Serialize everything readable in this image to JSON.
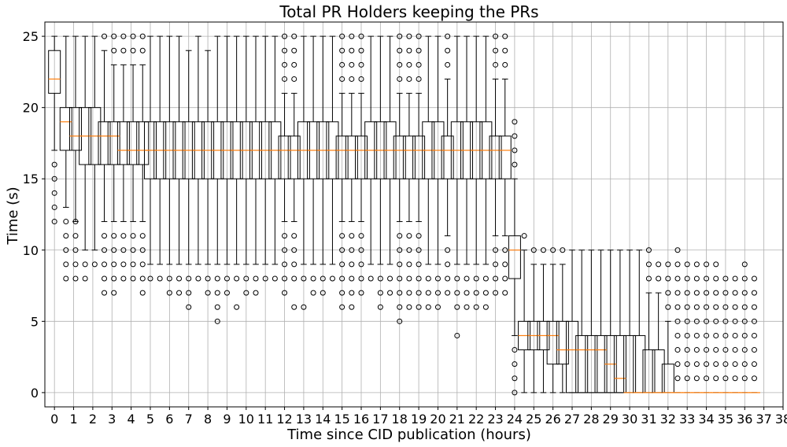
{
  "chart_data": {
    "type": "box",
    "title": "Total PR Holders keeping the PRs",
    "xlabel": "Time since CID publication (hours)",
    "ylabel": "Time (s)",
    "xlim": [
      -0.5,
      38
    ],
    "ylim": [
      -1,
      26
    ],
    "x_ticks": [
      "0",
      "1",
      "2",
      "3",
      "4",
      "5",
      "6",
      "7",
      "8",
      "9",
      "10",
      "11",
      "12",
      "13",
      "14",
      "15",
      "16",
      "17",
      "18",
      "19",
      "20",
      "21",
      "22",
      "23",
      "24",
      "25",
      "26",
      "27",
      "28",
      "29",
      "30",
      "31",
      "32",
      "33",
      "34",
      "35",
      "36",
      "37",
      "38"
    ],
    "y_ticks": [
      "0",
      "5",
      "10",
      "15",
      "20",
      "25"
    ],
    "grid": true,
    "colors": {
      "median": "#ff7f0e",
      "box": "#000000",
      "grid": "#b0b0b0"
    },
    "boxes": [
      {
        "x": 0.0,
        "q1": 21,
        "med": 22,
        "q3": 24,
        "lo": 17,
        "hi": 25,
        "fl": [
          12,
          13,
          14,
          15,
          16
        ]
      },
      {
        "x": 0.6,
        "q1": 17,
        "med": 19,
        "q3": 20,
        "lo": 13,
        "hi": 25,
        "fl": [
          8,
          9,
          10,
          11,
          12
        ]
      },
      {
        "x": 1.1,
        "q1": 17,
        "med": 18,
        "q3": 20,
        "lo": 12,
        "hi": 25,
        "fl": [
          8,
          9,
          10,
          11,
          12
        ]
      },
      {
        "x": 1.6,
        "q1": 16,
        "med": 18,
        "q3": 20,
        "lo": 10,
        "hi": 25,
        "fl": [
          8,
          9
        ]
      },
      {
        "x": 2.1,
        "q1": 16,
        "med": 18,
        "q3": 20,
        "lo": 10,
        "hi": 25,
        "fl": [
          9
        ]
      },
      {
        "x": 2.6,
        "q1": 16,
        "med": 18,
        "q3": 19,
        "lo": 12,
        "hi": 24,
        "fl": [
          7,
          8,
          9,
          10,
          11,
          25
        ]
      },
      {
        "x": 3.1,
        "q1": 16,
        "med": 18,
        "q3": 19,
        "lo": 12,
        "hi": 23,
        "fl": [
          7,
          8,
          9,
          10,
          11,
          24,
          25
        ]
      },
      {
        "x": 3.6,
        "q1": 16,
        "med": 17,
        "q3": 19,
        "lo": 12,
        "hi": 23,
        "fl": [
          8,
          9,
          10,
          11,
          24,
          25
        ]
      },
      {
        "x": 4.1,
        "q1": 16,
        "med": 17,
        "q3": 19,
        "lo": 12,
        "hi": 23,
        "fl": [
          8,
          9,
          10,
          11,
          24,
          25
        ]
      },
      {
        "x": 4.6,
        "q1": 16,
        "med": 17,
        "q3": 19,
        "lo": 12,
        "hi": 23,
        "fl": [
          7,
          8,
          9,
          10,
          11,
          24,
          25
        ]
      },
      {
        "x": 5.0,
        "q1": 15,
        "med": 17,
        "q3": 19,
        "lo": 9,
        "hi": 25,
        "fl": [
          8
        ]
      },
      {
        "x": 5.5,
        "q1": 15,
        "med": 17,
        "q3": 19,
        "lo": 9,
        "hi": 25,
        "fl": [
          8
        ]
      },
      {
        "x": 6.0,
        "q1": 15,
        "med": 17,
        "q3": 19,
        "lo": 9,
        "hi": 25,
        "fl": [
          7,
          8
        ]
      },
      {
        "x": 6.5,
        "q1": 15,
        "med": 17,
        "q3": 19,
        "lo": 9,
        "hi": 25,
        "fl": [
          7,
          8
        ]
      },
      {
        "x": 7.0,
        "q1": 15,
        "med": 17,
        "q3": 19,
        "lo": 9,
        "hi": 24,
        "fl": [
          6,
          7,
          8
        ]
      },
      {
        "x": 7.5,
        "q1": 15,
        "med": 17,
        "q3": 19,
        "lo": 9,
        "hi": 25,
        "fl": [
          8
        ]
      },
      {
        "x": 8.0,
        "q1": 15,
        "med": 17,
        "q3": 19,
        "lo": 9,
        "hi": 24,
        "fl": [
          7,
          8
        ]
      },
      {
        "x": 8.5,
        "q1": 15,
        "med": 17,
        "q3": 19,
        "lo": 9,
        "hi": 25,
        "fl": [
          5,
          6,
          7,
          8
        ]
      },
      {
        "x": 9.0,
        "q1": 15,
        "med": 17,
        "q3": 19,
        "lo": 9,
        "hi": 25,
        "fl": [
          7,
          8
        ]
      },
      {
        "x": 9.5,
        "q1": 15,
        "med": 17,
        "q3": 19,
        "lo": 9,
        "hi": 25,
        "fl": [
          6,
          8
        ]
      },
      {
        "x": 10.0,
        "q1": 15,
        "med": 17,
        "q3": 19,
        "lo": 9,
        "hi": 25,
        "fl": [
          7,
          8
        ]
      },
      {
        "x": 10.5,
        "q1": 15,
        "med": 17,
        "q3": 19,
        "lo": 9,
        "hi": 25,
        "fl": [
          7,
          8
        ]
      },
      {
        "x": 11.0,
        "q1": 15,
        "med": 17,
        "q3": 19,
        "lo": 9,
        "hi": 25,
        "fl": [
          8
        ]
      },
      {
        "x": 11.5,
        "q1": 15,
        "med": 17,
        "q3": 19,
        "lo": 9,
        "hi": 25,
        "fl": [
          8
        ]
      },
      {
        "x": 12.0,
        "q1": 15,
        "med": 17,
        "q3": 18,
        "lo": 12,
        "hi": 21,
        "fl": [
          7,
          8,
          9,
          10,
          11,
          22,
          23,
          24,
          25
        ]
      },
      {
        "x": 12.5,
        "q1": 15,
        "med": 17,
        "q3": 18,
        "lo": 12,
        "hi": 21,
        "fl": [
          6,
          8,
          9,
          10,
          11,
          22,
          23,
          24,
          25
        ]
      },
      {
        "x": 13.0,
        "q1": 15,
        "med": 17,
        "q3": 19,
        "lo": 9,
        "hi": 25,
        "fl": [
          6,
          8
        ]
      },
      {
        "x": 13.5,
        "q1": 15,
        "med": 17,
        "q3": 19,
        "lo": 9,
        "hi": 25,
        "fl": [
          7,
          8
        ]
      },
      {
        "x": 14.0,
        "q1": 15,
        "med": 17,
        "q3": 19,
        "lo": 9,
        "hi": 25,
        "fl": [
          7,
          8
        ]
      },
      {
        "x": 14.5,
        "q1": 15,
        "med": 17,
        "q3": 19,
        "lo": 9,
        "hi": 25,
        "fl": [
          8
        ]
      },
      {
        "x": 15.0,
        "q1": 15,
        "med": 17,
        "q3": 18,
        "lo": 12,
        "hi": 21,
        "fl": [
          6,
          7,
          8,
          9,
          10,
          11,
          22,
          23,
          24,
          25
        ]
      },
      {
        "x": 15.5,
        "q1": 15,
        "med": 17,
        "q3": 18,
        "lo": 12,
        "hi": 21,
        "fl": [
          6,
          7,
          8,
          9,
          10,
          11,
          22,
          23,
          24,
          25
        ]
      },
      {
        "x": 16.0,
        "q1": 15,
        "med": 17,
        "q3": 18,
        "lo": 12,
        "hi": 21,
        "fl": [
          7,
          8,
          9,
          10,
          11,
          22,
          23,
          24,
          25
        ]
      },
      {
        "x": 16.5,
        "q1": 15,
        "med": 17,
        "q3": 19,
        "lo": 9,
        "hi": 25,
        "fl": [
          8
        ]
      },
      {
        "x": 17.0,
        "q1": 15,
        "med": 17,
        "q3": 19,
        "lo": 9,
        "hi": 25,
        "fl": [
          6,
          7,
          8
        ]
      },
      {
        "x": 17.5,
        "q1": 15,
        "med": 17,
        "q3": 19,
        "lo": 9,
        "hi": 25,
        "fl": [
          7,
          8
        ]
      },
      {
        "x": 18.0,
        "q1": 15,
        "med": 17,
        "q3": 18,
        "lo": 12,
        "hi": 21,
        "fl": [
          5,
          6,
          7,
          8,
          9,
          10,
          11,
          22,
          23,
          24,
          25
        ]
      },
      {
        "x": 18.5,
        "q1": 15,
        "med": 17,
        "q3": 18,
        "lo": 12,
        "hi": 21,
        "fl": [
          6,
          7,
          8,
          9,
          10,
          11,
          22,
          23,
          24,
          25
        ]
      },
      {
        "x": 19.0,
        "q1": 15,
        "med": 17,
        "q3": 18,
        "lo": 12,
        "hi": 21,
        "fl": [
          6,
          7,
          8,
          9,
          10,
          11,
          22,
          23,
          24,
          25
        ]
      },
      {
        "x": 19.5,
        "q1": 15,
        "med": 17,
        "q3": 19,
        "lo": 9,
        "hi": 25,
        "fl": [
          6,
          7,
          8
        ]
      },
      {
        "x": 20.0,
        "q1": 15,
        "med": 17,
        "q3": 19,
        "lo": 9,
        "hi": 25,
        "fl": [
          6,
          7,
          8
        ]
      },
      {
        "x": 20.5,
        "q1": 15,
        "med": 17,
        "q3": 18,
        "lo": 11,
        "hi": 22,
        "fl": [
          7,
          8,
          9,
          10,
          23,
          24,
          25
        ]
      },
      {
        "x": 21.0,
        "q1": 15,
        "med": 17,
        "q3": 19,
        "lo": 9,
        "hi": 25,
        "fl": [
          4,
          6,
          7,
          8
        ]
      },
      {
        "x": 21.5,
        "q1": 15,
        "med": 17,
        "q3": 19,
        "lo": 9,
        "hi": 25,
        "fl": [
          6,
          7,
          8
        ]
      },
      {
        "x": 22.0,
        "q1": 15,
        "med": 17,
        "q3": 19,
        "lo": 9,
        "hi": 25,
        "fl": [
          6,
          7,
          8
        ]
      },
      {
        "x": 22.5,
        "q1": 15,
        "med": 17,
        "q3": 19,
        "lo": 9,
        "hi": 25,
        "fl": [
          6,
          7,
          8
        ]
      },
      {
        "x": 23.0,
        "q1": 15,
        "med": 17,
        "q3": 18,
        "lo": 11,
        "hi": 22,
        "fl": [
          7,
          8,
          9,
          10,
          23,
          24,
          25
        ]
      },
      {
        "x": 23.5,
        "q1": 15,
        "med": 17,
        "q3": 18,
        "lo": 11,
        "hi": 22,
        "fl": [
          7,
          8,
          9,
          10,
          23,
          24,
          25
        ]
      },
      {
        "x": 24.0,
        "q1": 8,
        "med": 10,
        "q3": 11,
        "lo": 4,
        "hi": 15,
        "fl": [
          0,
          1,
          2,
          3,
          16,
          17,
          18,
          19
        ]
      },
      {
        "x": 24.5,
        "q1": 3,
        "med": 4,
        "q3": 5,
        "lo": 0,
        "hi": 10,
        "fl": [
          11
        ]
      },
      {
        "x": 25.0,
        "q1": 3,
        "med": 4,
        "q3": 5,
        "lo": 0,
        "hi": 9,
        "fl": [
          10
        ]
      },
      {
        "x": 25.5,
        "q1": 3,
        "med": 4,
        "q3": 5,
        "lo": 0,
        "hi": 9,
        "fl": [
          10
        ]
      },
      {
        "x": 26.0,
        "q1": 2,
        "med": 4,
        "q3": 5,
        "lo": 0,
        "hi": 9,
        "fl": [
          10
        ]
      },
      {
        "x": 26.5,
        "q1": 2,
        "med": 3,
        "q3": 5,
        "lo": 0,
        "hi": 9,
        "fl": [
          10
        ]
      },
      {
        "x": 27.0,
        "q1": 0,
        "med": 3,
        "q3": 5,
        "lo": 0,
        "hi": 10,
        "fl": []
      },
      {
        "x": 27.5,
        "q1": 0,
        "med": 3,
        "q3": 4,
        "lo": 0,
        "hi": 10,
        "fl": []
      },
      {
        "x": 28.0,
        "q1": 0,
        "med": 3,
        "q3": 4,
        "lo": 0,
        "hi": 10,
        "fl": []
      },
      {
        "x": 28.5,
        "q1": 0,
        "med": 3,
        "q3": 4,
        "lo": 0,
        "hi": 10,
        "fl": []
      },
      {
        "x": 29.0,
        "q1": 0,
        "med": 2,
        "q3": 4,
        "lo": 0,
        "hi": 10,
        "fl": []
      },
      {
        "x": 29.5,
        "q1": 0,
        "med": 1,
        "q3": 4,
        "lo": 0,
        "hi": 10,
        "fl": []
      },
      {
        "x": 30.0,
        "q1": 0,
        "med": 0,
        "q3": 4,
        "lo": 0,
        "hi": 10,
        "fl": []
      },
      {
        "x": 30.5,
        "q1": 0,
        "med": 0,
        "q3": 4,
        "lo": 0,
        "hi": 10,
        "fl": []
      },
      {
        "x": 31.0,
        "q1": 0,
        "med": 0,
        "q3": 3,
        "lo": 0,
        "hi": 7,
        "fl": [
          8,
          9,
          10
        ]
      },
      {
        "x": 31.5,
        "q1": 0,
        "med": 0,
        "q3": 3,
        "lo": 0,
        "hi": 7,
        "fl": [
          8,
          9
        ]
      },
      {
        "x": 32.0,
        "q1": 0,
        "med": 0,
        "q3": 2,
        "lo": 0,
        "hi": 5,
        "fl": [
          6,
          7,
          8,
          9
        ]
      },
      {
        "x": 32.5,
        "q1": 0,
        "med": 0,
        "q3": 0,
        "lo": 0,
        "hi": 0,
        "fl": [
          1,
          2,
          3,
          4,
          5,
          6,
          7,
          8,
          9,
          10
        ]
      },
      {
        "x": 33.0,
        "q1": 0,
        "med": 0,
        "q3": 0,
        "lo": 0,
        "hi": 0,
        "fl": [
          1,
          2,
          3,
          4,
          5,
          6,
          7,
          8,
          9
        ]
      },
      {
        "x": 33.5,
        "q1": 0,
        "med": 0,
        "q3": 0,
        "lo": 0,
        "hi": 0,
        "fl": [
          1,
          2,
          3,
          4,
          5,
          6,
          7,
          8,
          9
        ]
      },
      {
        "x": 34.0,
        "q1": 0,
        "med": 0,
        "q3": 0,
        "lo": 0,
        "hi": 0,
        "fl": [
          1,
          2,
          3,
          4,
          5,
          6,
          7,
          8,
          9
        ]
      },
      {
        "x": 34.5,
        "q1": 0,
        "med": 0,
        "q3": 0,
        "lo": 0,
        "hi": 0,
        "fl": [
          1,
          2,
          3,
          4,
          5,
          6,
          7,
          8,
          9
        ]
      },
      {
        "x": 35.0,
        "q1": 0,
        "med": 0,
        "q3": 0,
        "lo": 0,
        "hi": 0,
        "fl": [
          1,
          2,
          3,
          4,
          5,
          6,
          7,
          8
        ]
      },
      {
        "x": 35.5,
        "q1": 0,
        "med": 0,
        "q3": 0,
        "lo": 0,
        "hi": 0,
        "fl": [
          1,
          2,
          3,
          4,
          5,
          6,
          7,
          8
        ]
      },
      {
        "x": 36.0,
        "q1": 0,
        "med": 0,
        "q3": 0,
        "lo": 0,
        "hi": 0,
        "fl": [
          1,
          2,
          3,
          4,
          5,
          6,
          7,
          8,
          9
        ]
      },
      {
        "x": 36.5,
        "q1": 0,
        "med": 0,
        "q3": 0,
        "lo": 0,
        "hi": 0,
        "fl": [
          1,
          2,
          3,
          4,
          5,
          6,
          7,
          8
        ]
      }
    ]
  }
}
